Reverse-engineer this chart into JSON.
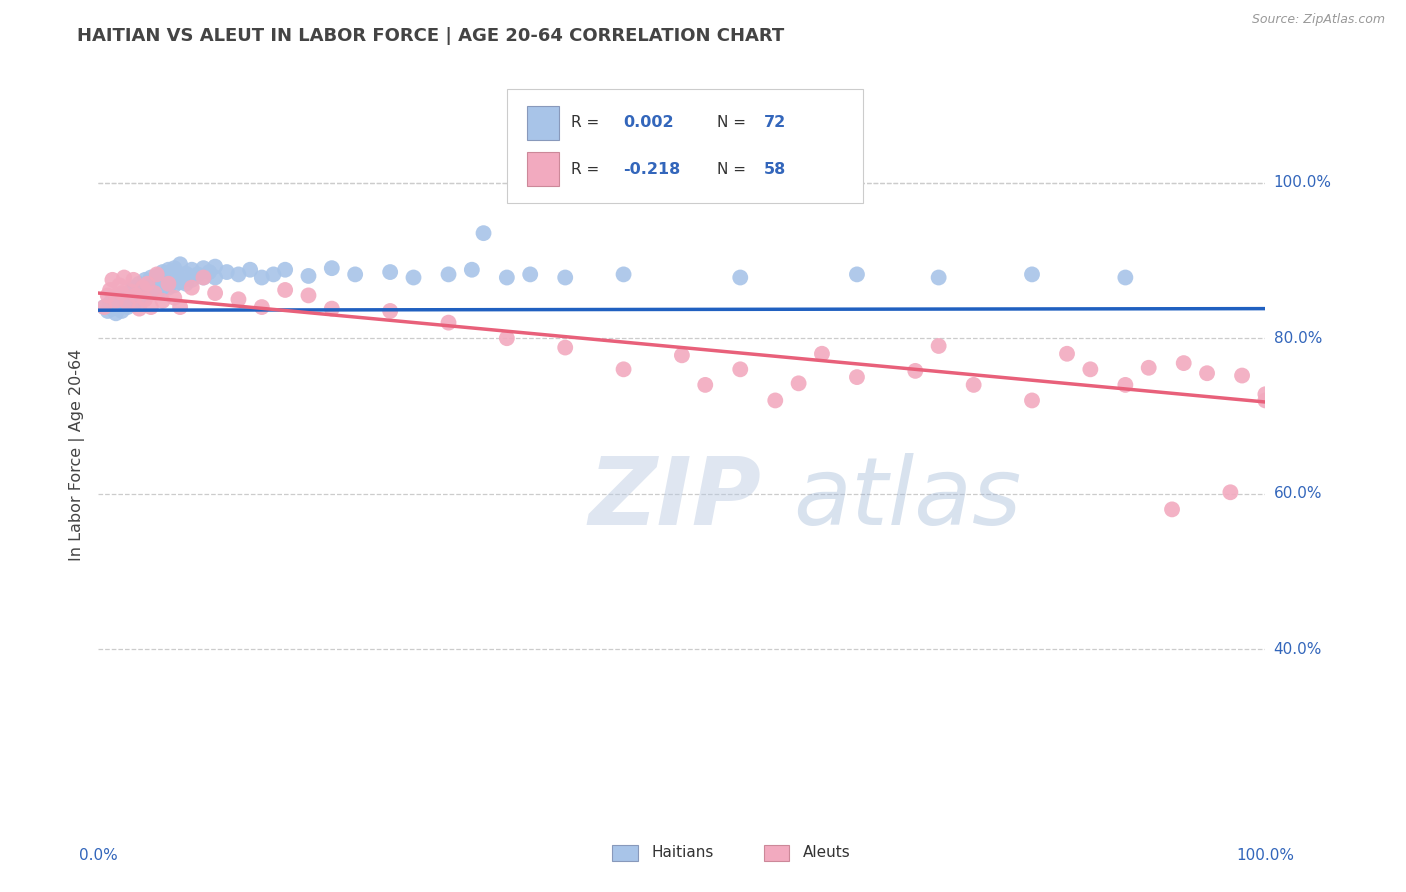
{
  "title": "HAITIAN VS ALEUT IN LABOR FORCE | AGE 20-64 CORRELATION CHART",
  "source": "Source: ZipAtlas.com",
  "ylabel": "In Labor Force | Age 20-64",
  "watermark_zip": "ZIP",
  "watermark_atlas": "atlas",
  "legend_R1": "R = 0.002",
  "legend_N1": "N = 72",
  "legend_R2": "R = -0.218",
  "legend_N2": "N = 58",
  "haitian_color": "#a8c4e8",
  "aleut_color": "#f2aabf",
  "haitian_line_color": "#2060c0",
  "aleut_line_color": "#e8607a",
  "xmin": 0.0,
  "xmax": 1.0,
  "ymin": 0.18,
  "ymax": 1.12,
  "ytick_vals": [
    0.4,
    0.6,
    0.8,
    1.0
  ],
  "ytick_labels": [
    "40.0%",
    "60.0%",
    "80.0%",
    "100.0%"
  ],
  "background_color": "#ffffff",
  "grid_color": "#cccccc",
  "title_color": "#444444",
  "tick_color": "#3366bb",
  "haitian_scatter_x": [
    0.005,
    0.008,
    0.01,
    0.012,
    0.015,
    0.015,
    0.018,
    0.02,
    0.02,
    0.022,
    0.025,
    0.025,
    0.028,
    0.03,
    0.03,
    0.032,
    0.035,
    0.035,
    0.038,
    0.04,
    0.04,
    0.042,
    0.045,
    0.045,
    0.048,
    0.05,
    0.05,
    0.052,
    0.055,
    0.055,
    0.058,
    0.06,
    0.06,
    0.062,
    0.065,
    0.065,
    0.068,
    0.07,
    0.07,
    0.075,
    0.075,
    0.08,
    0.08,
    0.085,
    0.09,
    0.09,
    0.095,
    0.1,
    0.1,
    0.11,
    0.12,
    0.13,
    0.14,
    0.15,
    0.16,
    0.18,
    0.2,
    0.22,
    0.25,
    0.27,
    0.3,
    0.32,
    0.33,
    0.35,
    0.37,
    0.4,
    0.45,
    0.55,
    0.65,
    0.72,
    0.8,
    0.88
  ],
  "haitian_scatter_y": [
    0.84,
    0.835,
    0.845,
    0.838,
    0.85,
    0.832,
    0.845,
    0.855,
    0.835,
    0.848,
    0.858,
    0.84,
    0.852,
    0.865,
    0.843,
    0.856,
    0.87,
    0.848,
    0.86,
    0.875,
    0.855,
    0.865,
    0.878,
    0.858,
    0.868,
    0.88,
    0.86,
    0.872,
    0.885,
    0.862,
    0.875,
    0.888,
    0.865,
    0.878,
    0.89,
    0.868,
    0.88,
    0.895,
    0.872,
    0.883,
    0.87,
    0.888,
    0.875,
    0.882,
    0.89,
    0.878,
    0.885,
    0.892,
    0.878,
    0.885,
    0.882,
    0.888,
    0.878,
    0.882,
    0.888,
    0.88,
    0.89,
    0.882,
    0.885,
    0.878,
    0.882,
    0.888,
    0.935,
    0.878,
    0.882,
    0.878,
    0.882,
    0.878,
    0.882,
    0.878,
    0.882,
    0.878
  ],
  "aleut_scatter_x": [
    0.005,
    0.008,
    0.01,
    0.012,
    0.015,
    0.018,
    0.02,
    0.022,
    0.025,
    0.028,
    0.03,
    0.032,
    0.035,
    0.038,
    0.04,
    0.042,
    0.045,
    0.048,
    0.05,
    0.055,
    0.06,
    0.065,
    0.07,
    0.08,
    0.09,
    0.1,
    0.12,
    0.14,
    0.16,
    0.18,
    0.2,
    0.25,
    0.3,
    0.35,
    0.4,
    0.45,
    0.5,
    0.52,
    0.55,
    0.58,
    0.6,
    0.62,
    0.65,
    0.7,
    0.72,
    0.75,
    0.8,
    0.83,
    0.85,
    0.88,
    0.9,
    0.92,
    0.93,
    0.95,
    0.97,
    0.98,
    1.0,
    1.0
  ],
  "aleut_scatter_y": [
    0.84,
    0.855,
    0.862,
    0.875,
    0.848,
    0.868,
    0.858,
    0.878,
    0.845,
    0.86,
    0.875,
    0.855,
    0.838,
    0.865,
    0.85,
    0.87,
    0.84,
    0.858,
    0.882,
    0.848,
    0.87,
    0.852,
    0.84,
    0.865,
    0.878,
    0.858,
    0.85,
    0.84,
    0.862,
    0.855,
    0.838,
    0.835,
    0.82,
    0.8,
    0.788,
    0.76,
    0.778,
    0.74,
    0.76,
    0.72,
    0.742,
    0.78,
    0.75,
    0.758,
    0.79,
    0.74,
    0.72,
    0.78,
    0.76,
    0.74,
    0.762,
    0.58,
    0.768,
    0.755,
    0.602,
    0.752,
    0.728,
    0.72
  ],
  "haitian_trend_x": [
    0.0,
    1.0
  ],
  "haitian_trend_y": [
    0.836,
    0.838
  ],
  "aleut_trend_x": [
    0.0,
    1.0
  ],
  "aleut_trend_y": [
    0.858,
    0.718
  ]
}
